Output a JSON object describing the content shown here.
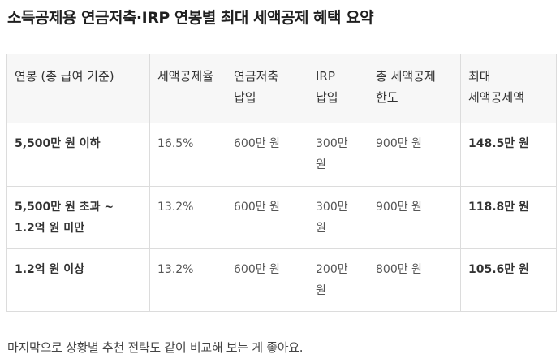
{
  "title": "소득공제용 연금저축·IRP 연봉별 최대 세액공제 혜택 요약",
  "table": {
    "headers": [
      [
        "연봉 (총 급여 기준)"
      ],
      [
        "세액공제율"
      ],
      [
        "연금저축",
        "납입"
      ],
      [
        "IRP",
        "납입"
      ],
      [
        "총 세액공제",
        "한도"
      ],
      [
        "최대",
        "세액공제액"
      ]
    ],
    "rows": [
      {
        "salary": [
          "5,500만 원 이하"
        ],
        "rate": "16.5%",
        "pension": "600만 원",
        "irp": [
          "300만",
          "원"
        ],
        "limit": "900만 원",
        "max": "148.5만 원"
      },
      {
        "salary": [
          "5,500만 원 초과 ~",
          "1.2억 원 미만"
        ],
        "rate": "13.2%",
        "pension": "600만 원",
        "irp": [
          "300만",
          "원"
        ],
        "limit": "900만 원",
        "max": "118.8만 원"
      },
      {
        "salary": [
          "1.2억 원 이상"
        ],
        "rate": "13.2%",
        "pension": "600만 원",
        "irp": [
          "200만",
          "원"
        ],
        "limit": "800만 원",
        "max": "105.6만 원"
      }
    ]
  },
  "footer": "마지막으로 상황별 추천 전략도 같이 비교해 보는 게 좋아요."
}
